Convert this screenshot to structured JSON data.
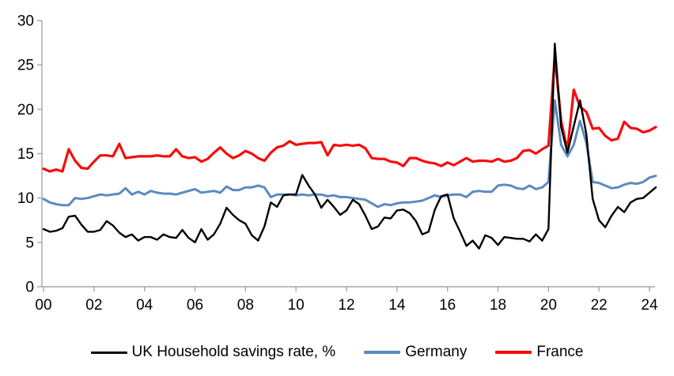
{
  "chart_data": {
    "type": "line",
    "title": "",
    "xlabel": "",
    "ylabel": "",
    "x_unit": "quarterly, 2000Q1 to 2024Q2",
    "x_tick_labels": [
      "00",
      "02",
      "04",
      "06",
      "08",
      "10",
      "12",
      "14",
      "16",
      "18",
      "20",
      "22",
      "24"
    ],
    "y_tick_labels": [
      "0",
      "5",
      "10",
      "15",
      "20",
      "25",
      "30"
    ],
    "y_ticks": [
      0,
      5,
      10,
      15,
      20,
      25,
      30
    ],
    "ylim": [
      0,
      30
    ],
    "grid": "off",
    "legend_position": "bottom",
    "axis_color": "#a6a6a6",
    "series": [
      {
        "name": "UK Household savings rate, %",
        "id": "uk",
        "color": "#000000",
        "line_width": 2.4,
        "values": [
          6.5,
          6.2,
          6.3,
          6.6,
          7.9,
          8.0,
          7.0,
          6.2,
          6.2,
          6.4,
          7.4,
          6.9,
          6.1,
          5.6,
          5.9,
          5.2,
          5.6,
          5.6,
          5.3,
          5.9,
          5.6,
          5.5,
          6.4,
          5.5,
          5.0,
          6.5,
          5.3,
          5.9,
          7.1,
          8.9,
          8.1,
          7.5,
          7.1,
          5.8,
          5.2,
          6.8,
          9.5,
          9.0,
          10.3,
          10.4,
          10.4,
          12.6,
          11.4,
          10.4,
          8.9,
          9.8,
          9.0,
          8.1,
          8.6,
          9.8,
          9.3,
          8.0,
          6.5,
          6.8,
          7.8,
          7.7,
          8.6,
          8.7,
          8.3,
          7.4,
          5.9,
          6.2,
          8.7,
          10.2,
          10.4,
          7.7,
          6.2,
          4.6,
          5.2,
          4.3,
          5.8,
          5.5,
          4.7,
          5.6,
          5.5,
          5.4,
          5.4,
          5.1,
          5.9,
          5.2,
          6.5,
          27.4,
          18.0,
          15.1,
          18.1,
          21.0,
          17.2,
          9.9,
          7.5,
          6.7,
          8.0,
          9.0,
          8.4,
          9.5,
          9.9,
          10.0,
          10.6,
          11.2
        ]
      },
      {
        "name": "Germany",
        "id": "germany",
        "color": "#5b8ac0",
        "line_width": 3.0,
        "values": [
          9.9,
          9.5,
          9.3,
          9.2,
          9.2,
          10.0,
          9.9,
          10.0,
          10.2,
          10.4,
          10.3,
          10.4,
          10.5,
          11.1,
          10.4,
          10.7,
          10.4,
          10.8,
          10.6,
          10.5,
          10.5,
          10.4,
          10.6,
          10.8,
          11.0,
          10.6,
          10.7,
          10.8,
          10.6,
          11.3,
          10.9,
          10.9,
          11.2,
          11.2,
          11.4,
          11.2,
          10.1,
          10.4,
          10.4,
          10.4,
          10.3,
          10.4,
          10.3,
          10.4,
          10.4,
          10.2,
          10.3,
          10.1,
          10.1,
          10.0,
          9.9,
          9.8,
          9.4,
          9.0,
          9.3,
          9.2,
          9.4,
          9.5,
          9.5,
          9.6,
          9.7,
          10.0,
          10.3,
          10.1,
          10.3,
          10.4,
          10.4,
          10.1,
          10.7,
          10.8,
          10.7,
          10.7,
          11.4,
          11.5,
          11.4,
          11.1,
          11.0,
          11.4,
          11.0,
          11.2,
          11.8,
          21.0,
          16.0,
          14.7,
          16.0,
          18.7,
          16.2,
          11.8,
          11.7,
          11.4,
          11.1,
          11.2,
          11.5,
          11.7,
          11.6,
          11.8,
          12.3,
          12.5
        ]
      },
      {
        "name": "France",
        "id": "france",
        "color": "#f80b0b",
        "line_width": 3.2,
        "values": [
          13.3,
          13.0,
          13.2,
          13.0,
          15.5,
          14.2,
          13.4,
          13.3,
          14.1,
          14.8,
          14.8,
          14.7,
          16.1,
          14.5,
          14.6,
          14.7,
          14.7,
          14.7,
          14.8,
          14.7,
          14.7,
          15.5,
          14.7,
          14.5,
          14.6,
          14.1,
          14.4,
          15.1,
          15.7,
          15.0,
          14.5,
          14.8,
          15.3,
          15.0,
          14.5,
          14.2,
          15.1,
          15.7,
          15.9,
          16.4,
          16.0,
          16.1,
          16.2,
          16.2,
          16.3,
          14.8,
          16.0,
          15.9,
          16.0,
          15.9,
          16.0,
          15.6,
          14.5,
          14.4,
          14.4,
          14.1,
          14.0,
          13.6,
          14.5,
          14.5,
          14.2,
          14.0,
          13.9,
          13.6,
          14.0,
          13.7,
          14.1,
          14.5,
          14.1,
          14.2,
          14.2,
          14.1,
          14.4,
          14.1,
          14.2,
          14.5,
          15.3,
          15.4,
          15.0,
          15.5,
          15.9,
          26.0,
          18.7,
          15.4,
          22.2,
          20.3,
          19.7,
          17.8,
          17.9,
          17.0,
          16.5,
          16.7,
          18.6,
          17.9,
          17.8,
          17.4,
          17.6,
          18.0
        ]
      }
    ]
  },
  "legend": {
    "items": [
      {
        "label": "UK Household savings rate, %"
      },
      {
        "label": "Germany"
      },
      {
        "label": "France"
      }
    ]
  }
}
